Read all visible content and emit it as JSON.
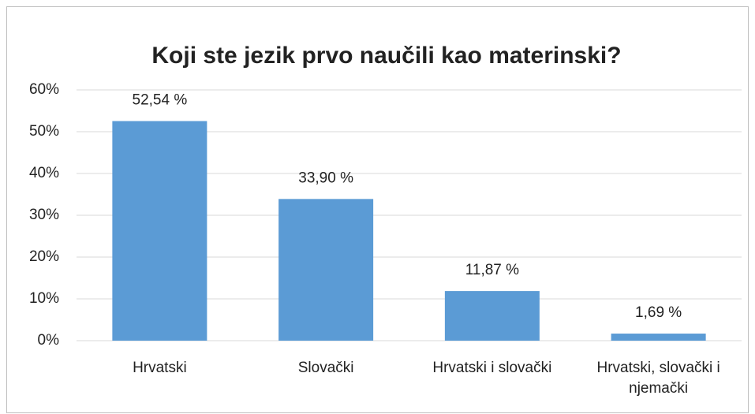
{
  "chart_data": {
    "type": "bar",
    "title": "Koji ste jezik prvo naučili kao materinski?",
    "categories": [
      "Hrvatski",
      "Slovački",
      "Hrvatski i slovački",
      "Hrvatski, slovački i njemački"
    ],
    "values": [
      52.54,
      33.9,
      11.87,
      1.69
    ],
    "value_labels": [
      "52,54 %",
      "33,90 %",
      "11,87 %",
      "1,69 %"
    ],
    "color": "#5b9bd5",
    "ylim": [
      0,
      60
    ],
    "yticks": [
      {
        "value": 0,
        "label": "0%"
      },
      {
        "value": 10,
        "label": "10%"
      },
      {
        "value": 20,
        "label": "20%"
      },
      {
        "value": 30,
        "label": "30%"
      },
      {
        "value": 40,
        "label": "40%"
      },
      {
        "value": 50,
        "label": "50%"
      },
      {
        "value": 60,
        "label": "60%"
      }
    ],
    "grid": true
  }
}
